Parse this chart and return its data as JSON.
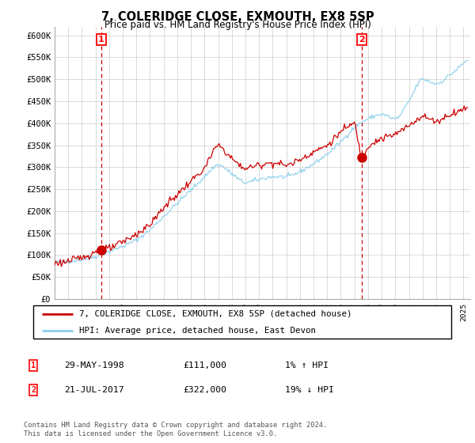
{
  "title": "7, COLERIDGE CLOSE, EXMOUTH, EX8 5SP",
  "subtitle": "Price paid vs. HM Land Registry's House Price Index (HPI)",
  "ylabel_ticks": [
    "£0",
    "£50K",
    "£100K",
    "£150K",
    "£200K",
    "£250K",
    "£300K",
    "£350K",
    "£400K",
    "£450K",
    "£500K",
    "£550K",
    "£600K"
  ],
  "ylim": [
    0,
    620000
  ],
  "xlim_start": 1995.0,
  "xlim_end": 2025.5,
  "sale1_date": 1998.41,
  "sale1_price": 111000,
  "sale2_date": 2017.55,
  "sale2_price": 322000,
  "legend_line1": "7, COLERIDGE CLOSE, EXMOUTH, EX8 5SP (detached house)",
  "legend_line2": "HPI: Average price, detached house, East Devon",
  "footer": "Contains HM Land Registry data © Crown copyright and database right 2024.\nThis data is licensed under the Open Government Licence v3.0.",
  "line_color_red": "#cc0000",
  "line_color_blue": "#87CEEB",
  "marker_color": "#cc0000",
  "vline_color": "#cc0000",
  "grid_color": "#cccccc",
  "bg_color": "#ffffff",
  "hpi_anchors_x": [
    1995.0,
    1996.0,
    1997.0,
    1998.0,
    1999.0,
    2000.0,
    2001.0,
    2002.0,
    2003.0,
    2004.0,
    2005.0,
    2006.0,
    2007.0,
    2008.0,
    2009.0,
    2010.0,
    2011.0,
    2012.0,
    2013.0,
    2014.0,
    2015.0,
    2016.0,
    2017.0,
    2018.0,
    2019.0,
    2020.0,
    2021.0,
    2022.0,
    2023.0,
    2024.0,
    2025.3
  ],
  "hpi_anchors_y": [
    82000,
    86000,
    90000,
    97000,
    108000,
    120000,
    135000,
    158000,
    188000,
    218000,
    248000,
    278000,
    305000,
    285000,
    265000,
    272000,
    278000,
    278000,
    290000,
    308000,
    330000,
    358000,
    390000,
    410000,
    420000,
    410000,
    450000,
    500000,
    490000,
    510000,
    545000
  ],
  "prop_anchors_x": [
    1995.0,
    1996.0,
    1997.0,
    1998.41,
    1999.0,
    2000.0,
    2001.0,
    2002.0,
    2003.0,
    2004.0,
    2005.0,
    2006.0,
    2007.0,
    2008.0,
    2009.0,
    2010.0,
    2011.0,
    2012.0,
    2013.0,
    2014.0,
    2015.0,
    2016.0,
    2017.0,
    2017.55,
    2018.0,
    2019.0,
    2020.0,
    2021.0,
    2022.0,
    2023.0,
    2024.0,
    2025.3
  ],
  "prop_anchors_y": [
    82000,
    86000,
    95000,
    111000,
    115000,
    130000,
    148000,
    170000,
    208000,
    238000,
    268000,
    298000,
    348000,
    320000,
    298000,
    305000,
    310000,
    305000,
    318000,
    335000,
    350000,
    380000,
    398000,
    322000,
    348000,
    365000,
    375000,
    395000,
    415000,
    405000,
    420000,
    435000
  ]
}
